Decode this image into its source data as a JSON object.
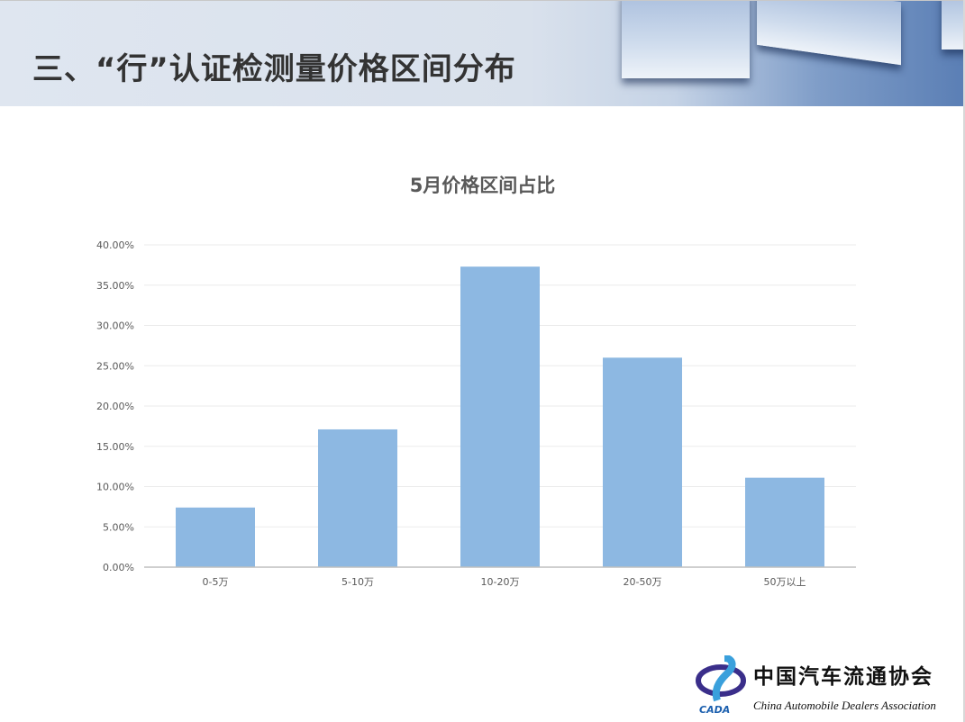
{
  "header": {
    "title": "三、“行”认证检测量价格区间分布"
  },
  "chart_data": {
    "type": "bar",
    "title": "5月价格区间占比",
    "categories": [
      "0-5万",
      "5-10万",
      "10-20万",
      "20-50万",
      "50万以上"
    ],
    "values": [
      7.4,
      17.1,
      37.3,
      26.0,
      11.1
    ],
    "unit": "%",
    "ylim": [
      0,
      40
    ],
    "yticks": [
      "0.00%",
      "5.00%",
      "10.00%",
      "15.00%",
      "20.00%",
      "25.00%",
      "30.00%",
      "35.00%",
      "40.00%"
    ],
    "grid": true,
    "bar_color": "#8db8e2",
    "xlabel": "",
    "ylabel": ""
  },
  "logo": {
    "cn": "中国汽车流通协会",
    "en": "China Automobile Dealers Association",
    "mark": "CADA"
  }
}
